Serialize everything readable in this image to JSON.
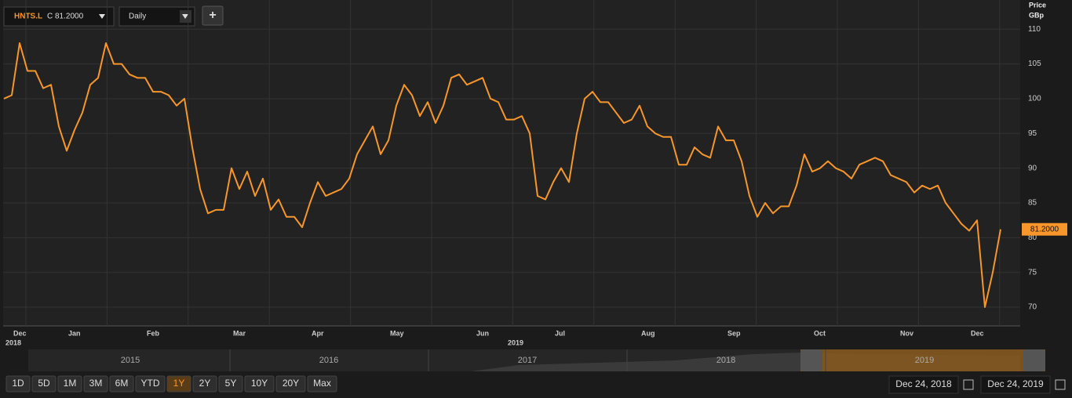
{
  "toolbar": {
    "symbol": "HNTS.L",
    "close": "C 81.2000",
    "interval": "Daily",
    "add": "+"
  },
  "chart_data": {
    "type": "line",
    "axis_title": "Price",
    "axis_unit": "GBp",
    "categories": [
      null,
      "Dec",
      null,
      null,
      null,
      null,
      null,
      null,
      "Jan",
      null,
      null,
      null,
      null,
      null,
      null,
      null,
      null,
      null,
      "Feb",
      null,
      null,
      null,
      null,
      null,
      null,
      null,
      null,
      null,
      null,
      "Mar",
      null,
      null,
      null,
      null,
      null,
      null,
      null,
      null,
      null,
      "Apr",
      null,
      null,
      null,
      null,
      null,
      null,
      null,
      null,
      null,
      "May",
      null,
      null,
      null,
      null,
      null,
      null,
      null,
      null,
      null,
      null,
      "Jun",
      null,
      null,
      null,
      null,
      null,
      null,
      null,
      null,
      null,
      "Jul",
      null,
      null,
      null,
      null,
      null,
      null,
      null,
      null,
      null,
      null,
      "Aug",
      null,
      null,
      null,
      null,
      null,
      null,
      null,
      null,
      null,
      null,
      "Sep",
      null,
      null,
      null,
      null,
      null,
      null,
      null,
      null,
      null,
      null,
      "Oct",
      null,
      null,
      null,
      null,
      null,
      null,
      null,
      null,
      null,
      null,
      "Nov",
      null,
      null,
      null,
      null,
      null,
      null,
      null,
      null,
      "Dec",
      null,
      null,
      null,
      null
    ],
    "years": [
      "2018",
      "2019"
    ],
    "series": [
      {
        "name": "HNTS.L",
        "color": "#f7962b",
        "values": [
          100,
          100.5,
          108,
          104,
          104,
          101.5,
          102,
          96,
          92.5,
          95.5,
          98,
          102,
          103,
          108,
          105,
          105,
          103.5,
          103,
          103,
          101,
          101,
          100.5,
          99,
          100,
          93,
          87,
          83.5,
          84,
          84,
          90,
          87,
          89.5,
          86,
          88.5,
          84,
          85.5,
          83,
          83,
          81.5,
          85,
          88,
          86,
          86.5,
          87,
          88.5,
          92,
          94,
          96,
          92,
          94,
          99,
          102,
          100.5,
          97.5,
          99.5,
          96.5,
          99,
          103,
          103.5,
          102,
          102.5,
          103,
          100,
          99.5,
          97,
          97,
          97.5,
          95,
          86,
          85.5,
          88,
          90,
          88,
          95,
          100,
          101,
          99.5,
          99.5,
          98,
          96.5,
          97,
          99,
          96,
          95,
          94.5,
          94.5,
          90.5,
          90.5,
          93,
          92,
          91.5,
          96,
          94,
          94,
          91,
          86,
          83,
          85,
          83.5,
          84.5,
          84.5,
          87.5,
          92,
          89.5,
          90,
          91,
          90,
          89.5,
          88.5,
          90.5,
          91,
          91.5,
          91,
          89,
          88.5,
          88,
          86.5,
          87.5,
          87,
          87.5,
          85,
          83.5,
          82,
          81,
          82.5,
          70,
          75,
          81.2
        ]
      }
    ],
    "last_price": {
      "value": 81.2,
      "label": "81.2000"
    },
    "ylim": [
      67.3,
      114.2
    ],
    "yticks": [
      70,
      75,
      80,
      85,
      90,
      95,
      100,
      105,
      110
    ],
    "grid": true
  },
  "navigator": {
    "years": [
      "2015",
      "2016",
      "2017",
      "2018",
      "2019"
    ]
  },
  "ranges": [
    "1D",
    "5D",
    "1M",
    "3M",
    "6M",
    "YTD",
    "1Y",
    "2Y",
    "5Y",
    "10Y",
    "20Y",
    "Max"
  ],
  "active_range": "1Y",
  "date_from": "Dec 24, 2018",
  "date_to": "Dec 24, 2019"
}
